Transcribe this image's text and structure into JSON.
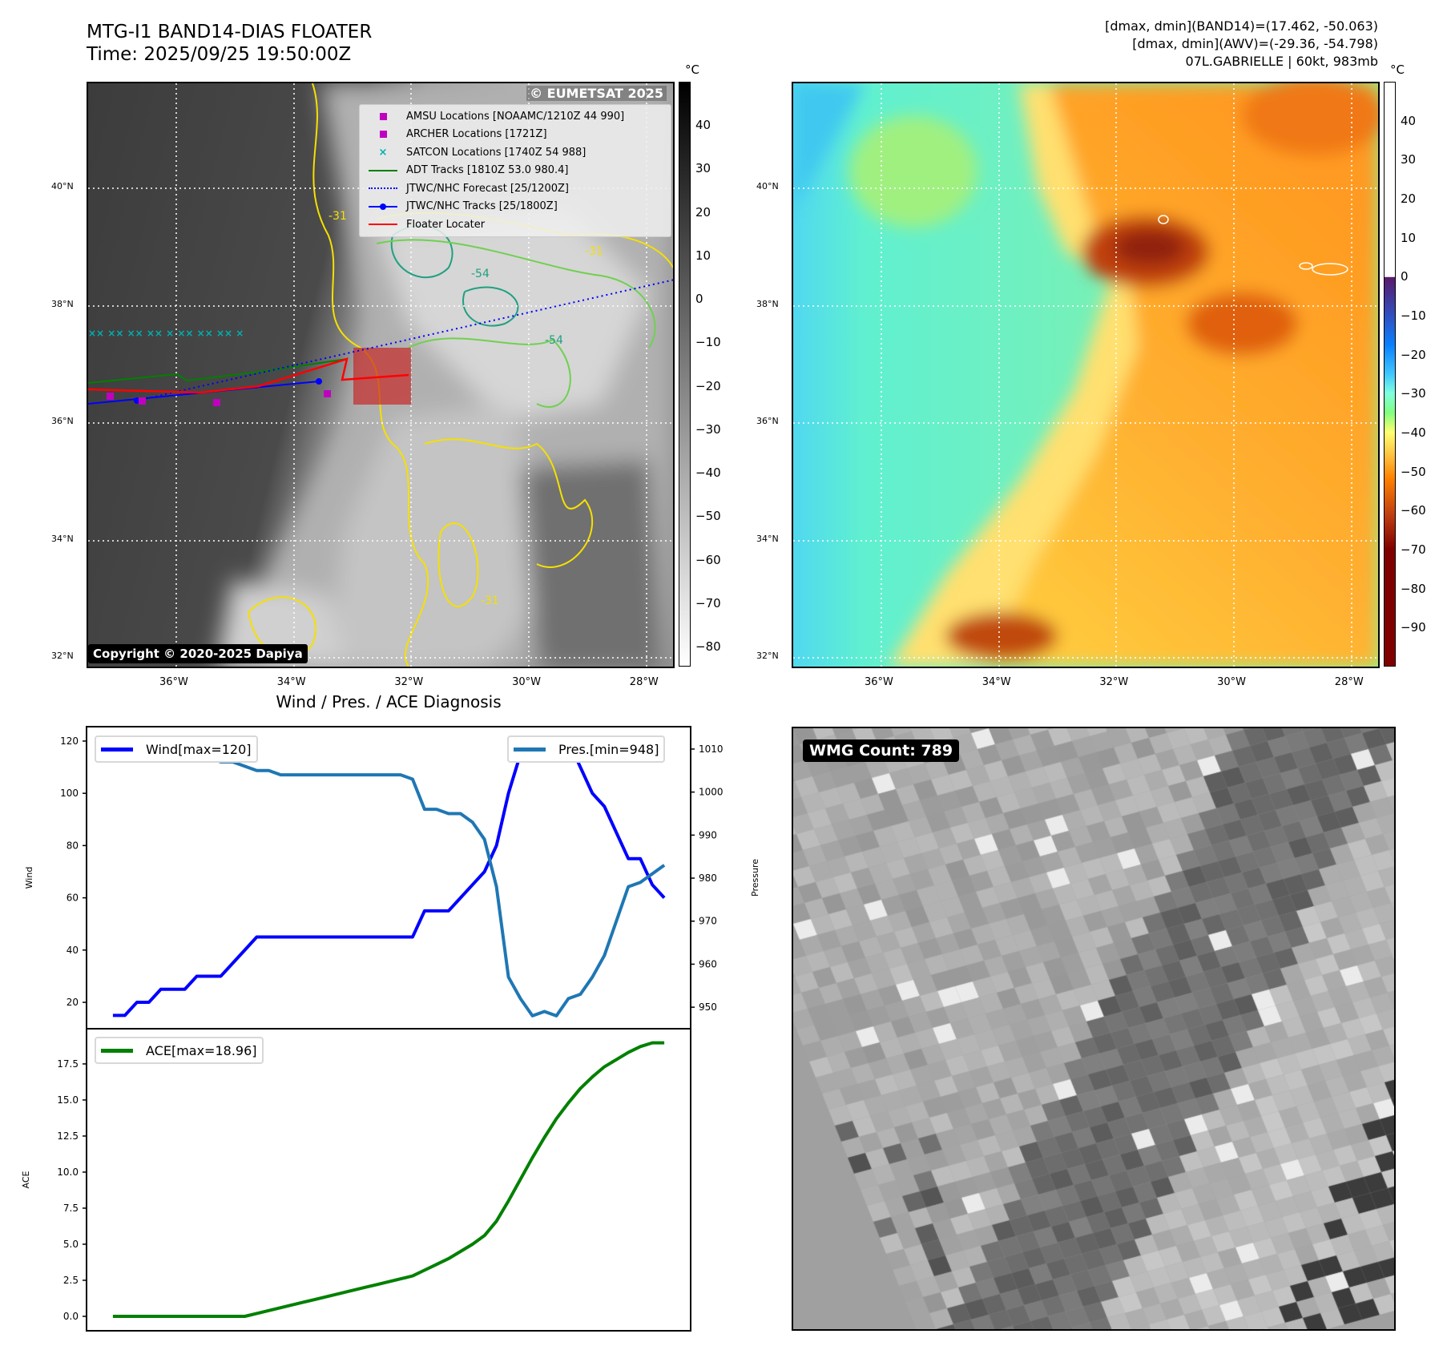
{
  "header": {
    "title": "MTG-I1 BAND14-DIAS FLOATER",
    "time": "Time: 2025/09/25 19:50:00Z",
    "stats_band14": "[dmax, dmin](BAND14)=(17.462, -50.063)",
    "stats_awv": "[dmax, dmin](AWV)=(-29.36, -54.798)",
    "storm": "07L.GABRIELLE | 60kt, 983mb"
  },
  "map_axes": {
    "lat_ticks": [
      "40°N",
      "38°N",
      "36°N",
      "34°N",
      "32°N"
    ],
    "lon_ticks": [
      "36°W",
      "34°W",
      "32°W",
      "30°W",
      "28°W"
    ]
  },
  "ir_map": {
    "watermark": "© EUMETSAT 2025",
    "copyright": "Copyright © 2020-2025 Dapiya",
    "contour_labels": [
      "-31",
      "-54",
      "-31",
      "-54",
      "-31"
    ],
    "legend": [
      {
        "label": "AMSU Locations [NOAAMC/1210Z 44 990]",
        "symbol": "square",
        "color": "#c000c0"
      },
      {
        "label": "ARCHER Locations [1721Z]",
        "symbol": "square",
        "color": "#c000c0"
      },
      {
        "label": "SATCON Locations [1740Z 54 988]",
        "symbol": "x",
        "color": "#00b0b0"
      },
      {
        "label": "ADT Tracks [1810Z 53.0 980.4]",
        "symbol": "line",
        "color": "#008000"
      },
      {
        "label": "JTWC/NHC Forecast [25/1200Z]",
        "symbol": "dotted",
        "color": "#0000ff"
      },
      {
        "label": "JTWC/NHC Tracks [25/1800Z]",
        "symbol": "line-dot",
        "color": "#0000ff"
      },
      {
        "label": "Floater Locater",
        "symbol": "line",
        "color": "#ff0000"
      }
    ],
    "colorbar": {
      "unit": "°C",
      "ticks": [
        "40",
        "30",
        "20",
        "10",
        "0",
        "−10",
        "−20",
        "−30",
        "−40",
        "−50",
        "−60",
        "−70",
        "−80"
      ],
      "range": [
        -84.6,
        50
      ]
    }
  },
  "awv_map": {
    "colorbar": {
      "unit": "°C",
      "ticks": [
        "40",
        "30",
        "20",
        "10",
        "0",
        "−10",
        "−20",
        "−30",
        "−40",
        "−50",
        "−60",
        "−70",
        "−80",
        "−90"
      ],
      "range": [
        -100,
        50
      ]
    }
  },
  "wmg": {
    "label": "WMG Count: 789"
  },
  "chart_data": [
    {
      "type": "line",
      "title": "Wind / Pres. / ACE Diagnosis",
      "ylabel": "Wind",
      "ylabel_right": "Pressure",
      "ylim": [
        9.9,
        125.5
      ],
      "ylim_right": [
        945,
        1015.2
      ],
      "xlim": [
        -2.2,
        48.2
      ],
      "yticks": [
        "20",
        "40",
        "60",
        "80",
        "100",
        "120"
      ],
      "yticks_right": [
        "950",
        "960",
        "970",
        "980",
        "990",
        "1000",
        "1010"
      ],
      "series": [
        {
          "name": "Wind[max=120]",
          "axis": "left",
          "color": "#0000ff",
          "values": [
            15,
            15,
            20,
            20,
            25,
            25,
            25,
            30,
            30,
            30,
            35,
            40,
            45,
            45,
            45,
            45,
            45,
            45,
            45,
            45,
            45,
            45,
            45,
            45,
            45,
            45,
            55,
            55,
            55,
            60,
            65,
            70,
            80,
            100,
            115,
            120,
            120,
            120,
            120,
            110,
            100,
            95,
            85,
            75,
            75,
            65,
            60
          ]
        },
        {
          "name": "Pres.[min=948]",
          "axis": "right",
          "color": "#1f77b4",
          "values": [
            1012,
            1012,
            1011,
            1011,
            1010,
            1010,
            1009,
            1009,
            1008,
            1007,
            1007,
            1006,
            1005,
            1005,
            1004,
            1004,
            1004,
            1004,
            1004,
            1004,
            1004,
            1004,
            1004,
            1004,
            1004,
            1003,
            996,
            996,
            995,
            995,
            993,
            989,
            978,
            957,
            952,
            948,
            949,
            948,
            952,
            953,
            957,
            962,
            970,
            978,
            979,
            981,
            983
          ]
        }
      ]
    },
    {
      "type": "line",
      "ylabel": "ACE",
      "ylim": [
        -1.0,
        19.94
      ],
      "xlim": [
        -2.2,
        48.2
      ],
      "yticks": [
        "0.0",
        "2.5",
        "5.0",
        "7.5",
        "10.0",
        "12.5",
        "15.0",
        "17.5"
      ],
      "series": [
        {
          "name": "ACE[max=18.96]",
          "color": "#008000",
          "values": [
            0,
            0,
            0,
            0,
            0,
            0,
            0,
            0,
            0,
            0,
            0,
            0,
            0.2,
            0.4,
            0.6,
            0.8,
            1.0,
            1.2,
            1.4,
            1.6,
            1.8,
            2.0,
            2.2,
            2.4,
            2.6,
            2.8,
            3.2,
            3.6,
            4.0,
            4.5,
            5.0,
            5.6,
            6.6,
            8.0,
            9.5,
            11.0,
            12.4,
            13.7,
            14.8,
            15.8,
            16.6,
            17.3,
            17.8,
            18.3,
            18.7,
            18.96,
            18.96
          ]
        }
      ]
    }
  ]
}
